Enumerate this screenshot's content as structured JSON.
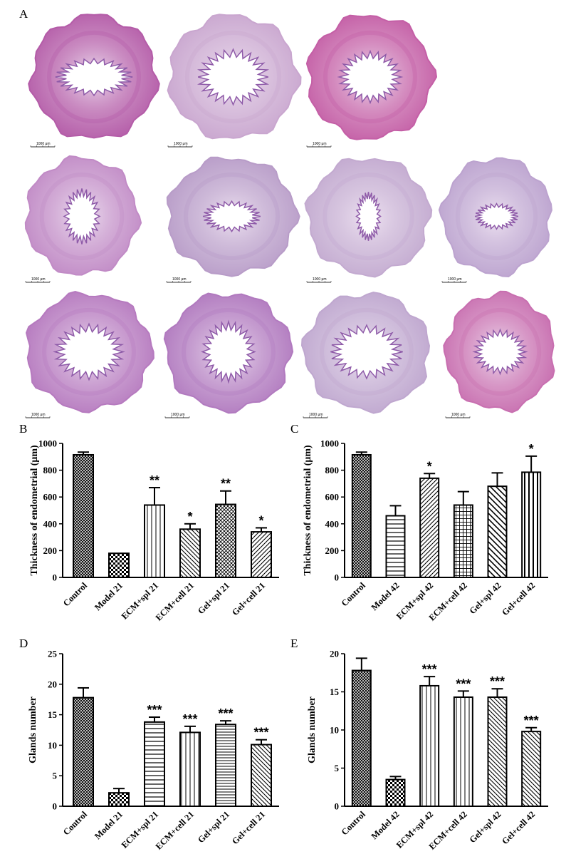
{
  "panels": {
    "A": "A",
    "B": "B",
    "C": "C",
    "D": "D",
    "E": "E"
  },
  "histology": {
    "scale_bar_label": "1000 μm",
    "rows": [
      [
        {
          "tone": "#b45ca8"
        },
        {
          "tone": "#c9a6cf"
        },
        {
          "tone": "#c45fa6"
        }
      ],
      [
        {
          "tone": "#c18bc6"
        },
        {
          "tone": "#b89cc8"
        },
        {
          "tone": "#c3aad0"
        },
        {
          "tone": "#bca3cf"
        }
      ],
      [
        {
          "tone": "#b67abf"
        },
        {
          "tone": "#b17abf"
        },
        {
          "tone": "#bfa7cf"
        },
        {
          "tone": "#c86fb0"
        }
      ]
    ]
  },
  "chart_data": [
    {
      "id": "B",
      "type": "bar",
      "ylabel": "Thickness of endometrial (μm)",
      "ylim": [
        0,
        1000
      ],
      "yticks": [
        0,
        200,
        400,
        600,
        800,
        1000
      ],
      "categories": [
        "Control",
        "Model 21",
        "ECM+spl 21",
        "ECM+cell 21",
        "Gel+spl 21",
        "Gel+cell 21"
      ],
      "values": [
        915,
        180,
        540,
        360,
        545,
        340
      ],
      "errors": [
        20,
        0,
        130,
        40,
        100,
        30
      ],
      "significance": [
        "",
        "",
        "**",
        "*",
        "**",
        "*"
      ],
      "patterns": [
        "crosshatch",
        "checker",
        "vertical",
        "diag-left",
        "crosshatch-fine",
        "diag-right"
      ]
    },
    {
      "id": "C",
      "type": "bar",
      "ylabel": "Thickness of endometrial (μm)",
      "ylim": [
        0,
        1000
      ],
      "yticks": [
        0,
        200,
        400,
        600,
        800,
        1000
      ],
      "categories": [
        "Control",
        "Model 42",
        "ECM+spl 42",
        "ECM+cell 42",
        "Gel+spl 42",
        "Gel+cell 42"
      ],
      "values": [
        915,
        460,
        740,
        540,
        680,
        785
      ],
      "errors": [
        20,
        75,
        35,
        100,
        100,
        120
      ],
      "significance": [
        "",
        "",
        "*",
        "",
        "",
        "*"
      ],
      "patterns": [
        "crosshatch",
        "horizontal",
        "diag-right",
        "grid",
        "diag-left-wide",
        "vertical-bold"
      ]
    },
    {
      "id": "D",
      "type": "bar",
      "ylabel": "Glands number",
      "ylim": [
        0,
        25
      ],
      "yticks": [
        0,
        5,
        10,
        15,
        20,
        25
      ],
      "categories": [
        "Control",
        "Model 21",
        "ECM+spl 21",
        "ECM+cell 21",
        "Gel+spl 21",
        "Gel+cell 21"
      ],
      "values": [
        17.8,
        2.2,
        13.8,
        12.1,
        13.4,
        10.1
      ],
      "errors": [
        1.6,
        0.7,
        0.8,
        1.0,
        0.6,
        0.8
      ],
      "significance": [
        "",
        "",
        "***",
        "***",
        "***",
        "***"
      ],
      "patterns": [
        "crosshatch",
        "checker",
        "horizontal",
        "vertical",
        "horizontal-fine",
        "diag-left"
      ]
    },
    {
      "id": "E",
      "type": "bar",
      "ylabel": "Glands number",
      "ylim": [
        0,
        20
      ],
      "yticks": [
        0,
        5,
        10,
        15,
        20
      ],
      "categories": [
        "Control",
        "Model 42",
        "ECM+spl 42",
        "ECM+cell 42",
        "Gel+spl 42",
        "Gel+cell 42"
      ],
      "values": [
        17.8,
        3.5,
        15.8,
        14.3,
        14.3,
        9.8
      ],
      "errors": [
        1.6,
        0.4,
        1.2,
        0.8,
        1.1,
        0.5
      ],
      "significance": [
        "",
        "",
        "***",
        "***",
        "***",
        "***"
      ],
      "patterns": [
        "crosshatch",
        "checker",
        "vertical",
        "vertical",
        "diag-left",
        "diag-left"
      ]
    }
  ]
}
